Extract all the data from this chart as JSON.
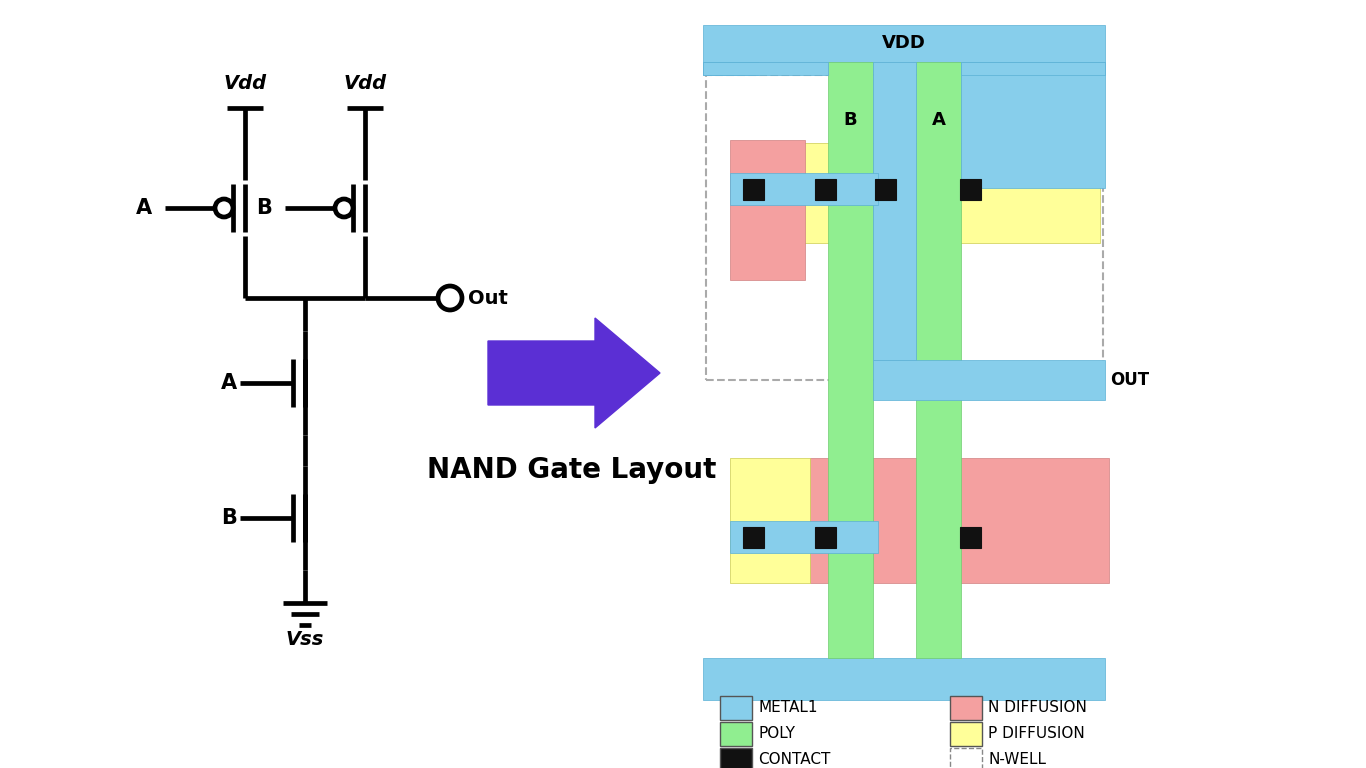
{
  "bg": "#ffffff",
  "metal1": "#87CEEB",
  "poly": "#90EE90",
  "ndiff": "#F4A0A0",
  "pdiff": "#FFFF99",
  "contact": "#111111",
  "arrow_color": "#5B2FD4",
  "legend": [
    {
      "label": "METAL1",
      "color": "#87CEEB",
      "dashed": false,
      "row": 0,
      "col": 0
    },
    {
      "label": "N DIFFUSION",
      "color": "#F4A0A0",
      "dashed": false,
      "row": 0,
      "col": 1
    },
    {
      "label": "POLY",
      "color": "#90EE90",
      "dashed": false,
      "row": 1,
      "col": 0
    },
    {
      "label": "P DIFFUSION",
      "color": "#FFFF99",
      "dashed": false,
      "row": 1,
      "col": 1
    },
    {
      "label": "CONTACT",
      "color": "#111111",
      "dashed": false,
      "row": 2,
      "col": 0
    },
    {
      "label": "N-WELL",
      "color": "none",
      "dashed": true,
      "row": 2,
      "col": 1
    }
  ]
}
